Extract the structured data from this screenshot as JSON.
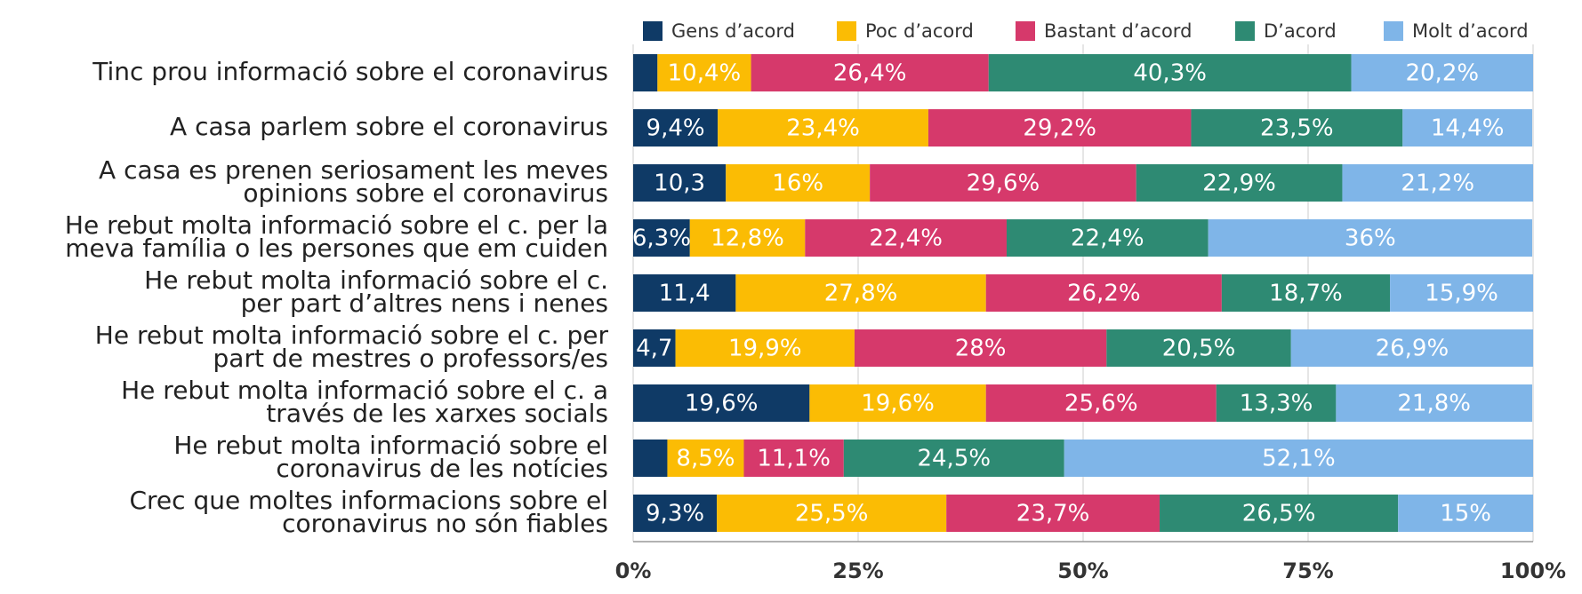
{
  "chart_data": {
    "type": "stacked_barh",
    "categories": [
      [
        "Tinc prou informació sobre el coronavirus"
      ],
      [
        "A casa parlem sobre el coronavirus"
      ],
      [
        "A casa es prenen seriosament les meves",
        "opinions sobre el coronavirus"
      ],
      [
        "He rebut molta informació sobre el c. per la",
        "meva família o les persones que em cuiden"
      ],
      [
        "He rebut molta informació sobre el c.",
        "per part d’altres nens i nenes"
      ],
      [
        "He rebut molta informació sobre el c. per",
        "part de mestres o professors/es"
      ],
      [
        "He rebut molta informació sobre el c. a",
        "través de les xarxes socials"
      ],
      [
        "He rebut molta informació sobre el",
        "coronavirus de les notícies"
      ],
      [
        "Crec que moltes informacions sobre el",
        "coronavirus no són fiables"
      ]
    ],
    "series": [
      {
        "name": "Gens d’acord",
        "color": "#0f3a66",
        "values": [
          2.7,
          9.4,
          10.3,
          6.3,
          11.4,
          4.7,
          19.6,
          3.8,
          9.3
        ],
        "value_labels": [
          null,
          "9,4%",
          "10,3",
          "6,3%",
          "11,4",
          "4,7",
          "19,6%",
          null,
          "9,3%"
        ]
      },
      {
        "name": "Poc d’acord",
        "color": "#fbbc04",
        "values": [
          10.4,
          23.4,
          16,
          12.8,
          27.8,
          19.9,
          19.6,
          8.5,
          25.5
        ],
        "value_labels": [
          "10,4%",
          "23,4%",
          "16%",
          "12,8%",
          "27,8%",
          "19,9%",
          "19,6%",
          "8,5%",
          "25,5%"
        ]
      },
      {
        "name": "Bastant d’acord",
        "color": "#d6396b",
        "values": [
          26.4,
          29.2,
          29.6,
          22.4,
          26.2,
          28,
          25.6,
          11.1,
          23.7
        ],
        "value_labels": [
          "26,4%",
          "29,2%",
          "29,6%",
          "22,4%",
          "26,2%",
          "28%",
          "25,6%",
          "11,1%",
          "23,7%"
        ]
      },
      {
        "name": "D’acord",
        "color": "#2e8a73",
        "values": [
          40.3,
          23.5,
          22.9,
          22.4,
          18.7,
          20.5,
          13.3,
          24.5,
          26.5
        ],
        "value_labels": [
          "40,3%",
          "23,5%",
          "22,9%",
          "22,4%",
          "18,7%",
          "20,5%",
          "13,3%",
          "24,5%",
          "26,5%"
        ]
      },
      {
        "name": "Molt d’acord",
        "color": "#7fb5e8",
        "values": [
          20.2,
          14.4,
          21.2,
          36,
          15.9,
          26.9,
          21.8,
          52.1,
          15
        ],
        "value_labels": [
          "20,2%",
          "14,4%",
          "21,2%",
          "36%",
          "15,9%",
          "26,9%",
          "21,8%",
          "52,1%",
          "15%"
        ]
      }
    ],
    "xlim": [
      0,
      100
    ],
    "xticks": [
      {
        "value": 0,
        "label": "0%"
      },
      {
        "value": 25,
        "label": "25%"
      },
      {
        "value": 50,
        "label": "50%"
      },
      {
        "value": 75,
        "label": "75%"
      },
      {
        "value": 100,
        "label": "100%"
      }
    ],
    "grid": true
  }
}
